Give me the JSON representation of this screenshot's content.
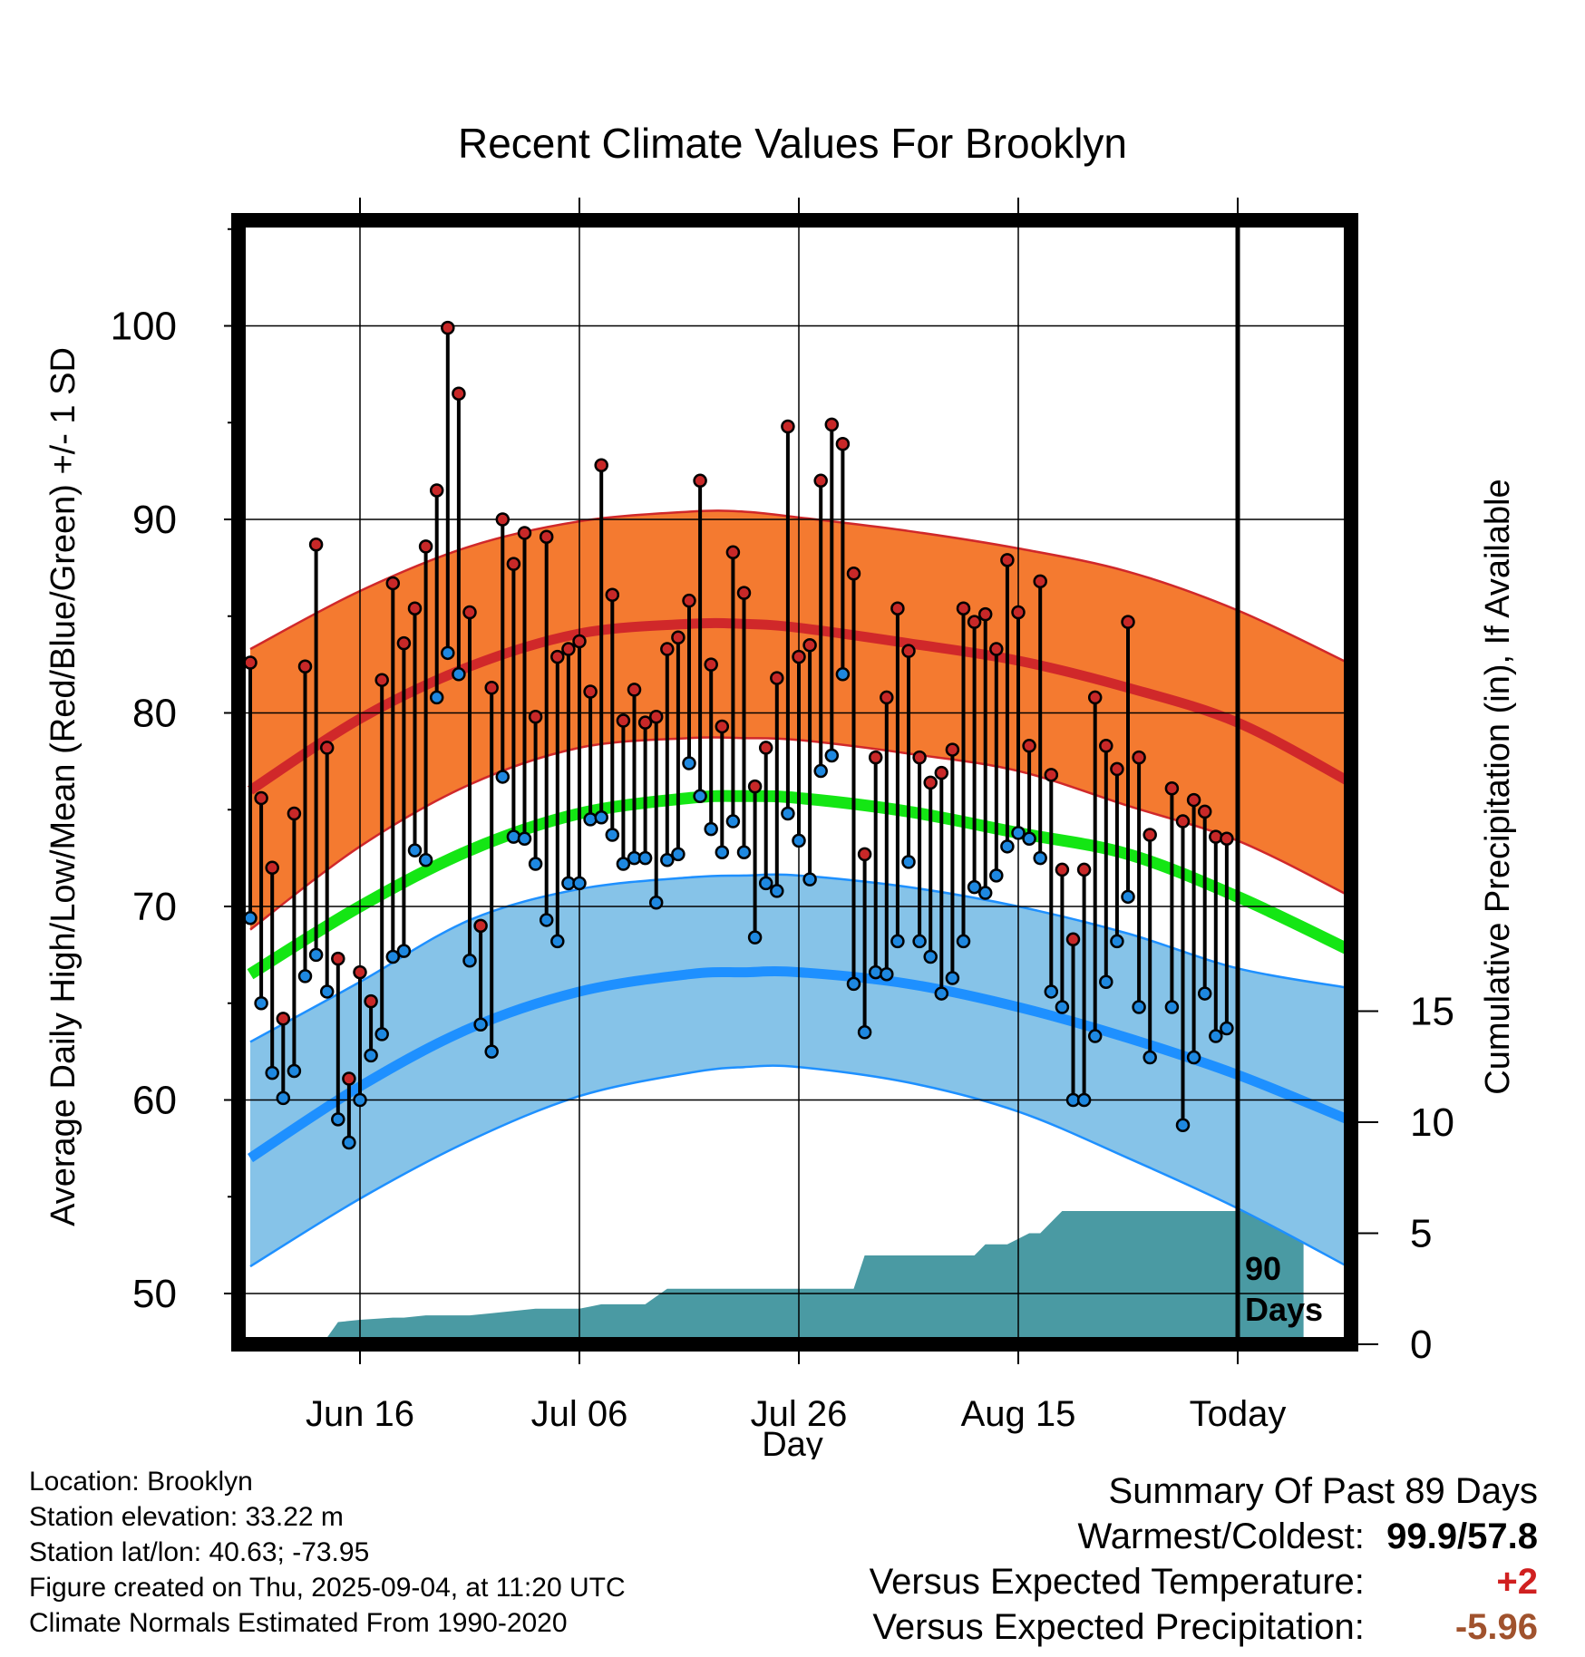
{
  "chart_data": {
    "type": "line",
    "title": "Recent Climate Values For Brooklyn",
    "xlabel": "Day",
    "ylabel": "Average Daily High/Low/Mean (Red/Blue/Green) +/- 1 SD",
    "y2label": "Cumulative Precipitation (in), If Available",
    "ylim": [
      48,
      105
    ],
    "y2lim": [
      0,
      50
    ],
    "yticks": [
      50,
      60,
      70,
      80,
      90,
      100
    ],
    "y2ticks": [
      0,
      5,
      10,
      15
    ],
    "xticks": [
      {
        "day": 10,
        "label": "Jun 16"
      },
      {
        "day": 30,
        "label": "Jul 06"
      },
      {
        "day": 50,
        "label": "Jul 26"
      },
      {
        "day": 70,
        "label": "Aug 15"
      },
      {
        "day": 90,
        "label": "Today"
      }
    ],
    "xlim": [
      0,
      100
    ],
    "today_day": 90,
    "today_label": [
      "90",
      "Days"
    ],
    "grid": true,
    "colors": {
      "high_band": "#f47a30",
      "high_mean": "#d0282a",
      "low_band": "#86c3e8",
      "low_mean": "#1e90ff",
      "mean": "#14e614",
      "precip": "#4a9aa3",
      "high_point": "#c82828",
      "low_point": "#1e88e0"
    },
    "normals": {
      "x": [
        0,
        10,
        20,
        30,
        40,
        45,
        50,
        60,
        70,
        80,
        90,
        100
      ],
      "high_mean": [
        76.0,
        79.7,
        82.4,
        84.1,
        84.6,
        84.6,
        84.4,
        83.6,
        82.7,
        81.3,
        79.5,
        76.5
      ],
      "high_upper": [
        83.3,
        86.3,
        88.6,
        89.9,
        90.4,
        90.4,
        90.1,
        89.4,
        88.5,
        87.3,
        85.3,
        82.6
      ],
      "high_lower": [
        68.8,
        73.1,
        76.3,
        78.2,
        78.7,
        78.7,
        78.6,
        77.9,
        77.0,
        75.2,
        73.4,
        70.6
      ],
      "mean": [
        66.5,
        70.0,
        72.9,
        74.8,
        75.6,
        75.7,
        75.6,
        74.9,
        73.8,
        72.7,
        70.5,
        67.8
      ],
      "low_mean": [
        57.0,
        60.7,
        63.7,
        65.6,
        66.5,
        66.6,
        66.6,
        66.0,
        64.8,
        63.2,
        61.3,
        59.0
      ],
      "low_upper": [
        63.0,
        66.1,
        69.3,
        70.9,
        71.5,
        71.6,
        71.6,
        71.0,
        70.0,
        68.6,
        66.8,
        65.8
      ],
      "low_lower": [
        51.4,
        54.9,
        57.9,
        60.2,
        61.4,
        61.7,
        61.7,
        60.9,
        59.4,
        57.0,
        54.4,
        51.4
      ]
    },
    "observed": {
      "day": [
        0,
        1,
        2,
        3,
        4,
        5,
        6,
        7,
        8,
        9,
        10,
        11,
        12,
        13,
        14,
        15,
        16,
        17,
        18,
        19,
        20,
        21,
        22,
        23,
        24,
        25,
        26,
        27,
        28,
        29,
        30,
        31,
        32,
        33,
        34,
        35,
        36,
        37,
        38,
        39,
        40,
        41,
        42,
        43,
        44,
        45,
        46,
        47,
        48,
        49,
        50,
        51,
        52,
        53,
        54,
        55,
        56,
        57,
        58,
        59,
        60,
        61,
        62,
        63,
        64,
        65,
        66,
        67,
        68,
        69,
        70,
        71,
        72,
        73,
        74,
        75,
        76,
        77,
        78,
        79,
        80,
        81,
        82,
        83,
        84,
        85,
        86,
        87,
        88,
        89
      ],
      "high": [
        82.6,
        75.6,
        72.0,
        64.2,
        74.8,
        82.4,
        88.7,
        78.2,
        67.3,
        61.1,
        66.6,
        65.1,
        81.7,
        86.7,
        83.6,
        85.4,
        88.6,
        91.5,
        99.9,
        96.5,
        85.2,
        69.0,
        81.3,
        90.0,
        87.7,
        89.3,
        79.8,
        89.1,
        82.9,
        83.3,
        83.7,
        81.1,
        92.8,
        86.1,
        79.6,
        81.2,
        79.5,
        79.8,
        83.3,
        83.9,
        85.8,
        92.0,
        82.5,
        79.3,
        88.3,
        86.2,
        76.2,
        78.2,
        81.8,
        94.8,
        82.9,
        83.5,
        92.0,
        94.9,
        93.9,
        87.2,
        72.7,
        77.7,
        80.8,
        85.4,
        83.2,
        77.7,
        76.4,
        76.9,
        78.1,
        85.4,
        84.7,
        85.1,
        83.3,
        87.9,
        85.2,
        78.3,
        86.8,
        76.8,
        71.9,
        68.3,
        71.9,
        80.8,
        78.3,
        77.1,
        84.7,
        77.7,
        73.7,
        null,
        76.1,
        74.4,
        75.5,
        74.9,
        73.6,
        73.5
      ],
      "low": [
        69.4,
        65.0,
        61.4,
        60.1,
        61.5,
        66.4,
        67.5,
        65.6,
        59.0,
        57.8,
        60.0,
        62.3,
        63.4,
        67.4,
        67.7,
        72.9,
        72.4,
        80.8,
        83.1,
        82.0,
        67.2,
        63.9,
        62.5,
        76.7,
        73.6,
        73.5,
        72.2,
        69.3,
        68.2,
        71.2,
        71.2,
        74.5,
        74.6,
        73.7,
        72.2,
        72.5,
        72.5,
        70.2,
        72.4,
        72.7,
        77.4,
        75.7,
        74.0,
        72.8,
        74.4,
        72.8,
        68.4,
        71.2,
        70.8,
        74.8,
        73.4,
        71.4,
        77.0,
        77.8,
        82.0,
        66.0,
        63.5,
        66.6,
        66.5,
        68.2,
        72.3,
        68.2,
        67.4,
        65.5,
        66.3,
        68.2,
        71.0,
        70.7,
        71.6,
        73.1,
        73.8,
        73.5,
        72.5,
        65.6,
        64.8,
        60.0,
        60.0,
        63.3,
        66.1,
        68.2,
        70.5,
        64.8,
        62.2,
        null,
        64.8,
        58.7,
        62.2,
        65.5,
        63.3,
        63.7
      ]
    },
    "precip_cumulative": {
      "day": [
        0,
        2,
        3.6,
        5,
        7,
        8,
        10,
        13,
        14,
        16,
        18,
        20,
        22,
        24,
        26,
        27,
        30,
        31,
        32,
        34,
        36,
        38,
        39,
        44,
        50,
        55,
        56,
        57,
        60,
        65,
        66,
        67,
        68,
        69,
        71,
        72,
        74,
        75,
        76,
        77,
        78,
        80,
        85,
        89,
        90,
        96
      ],
      "value": [
        0,
        0,
        0.2,
        0.3,
        0.3,
        1.0,
        1.1,
        1.2,
        1.2,
        1.3,
        1.3,
        1.3,
        1.4,
        1.5,
        1.6,
        1.6,
        1.6,
        1.7,
        1.8,
        1.8,
        1.8,
        2.5,
        2.5,
        2.5,
        2.5,
        2.5,
        4.0,
        4.0,
        4.0,
        4.0,
        4.0,
        4.5,
        4.5,
        4.5,
        5.0,
        5.0,
        6.0,
        6.0,
        6.0,
        6.0,
        6.0,
        6.0,
        6.0,
        6.0,
        6.0,
        6.0
      ]
    }
  },
  "info": {
    "location": "Location: Brooklyn",
    "elevation": "Station elevation: 33.22 m",
    "latlon": "Station lat/lon: 40.63; -73.95",
    "created": "Figure created on Thu, 2025-09-04, at 11:20 UTC",
    "normals": "Climate Normals Estimated From 1990-2020"
  },
  "summary": {
    "heading": "Summary Of Past 89 Days",
    "warmest_label": "Warmest/Coldest:",
    "warmest_value": "99.9/57.8",
    "temp_label": "Versus Expected Temperature:",
    "temp_value": "+2",
    "precip_label": "Versus Expected Precipitation:",
    "precip_value": "-5.96"
  }
}
